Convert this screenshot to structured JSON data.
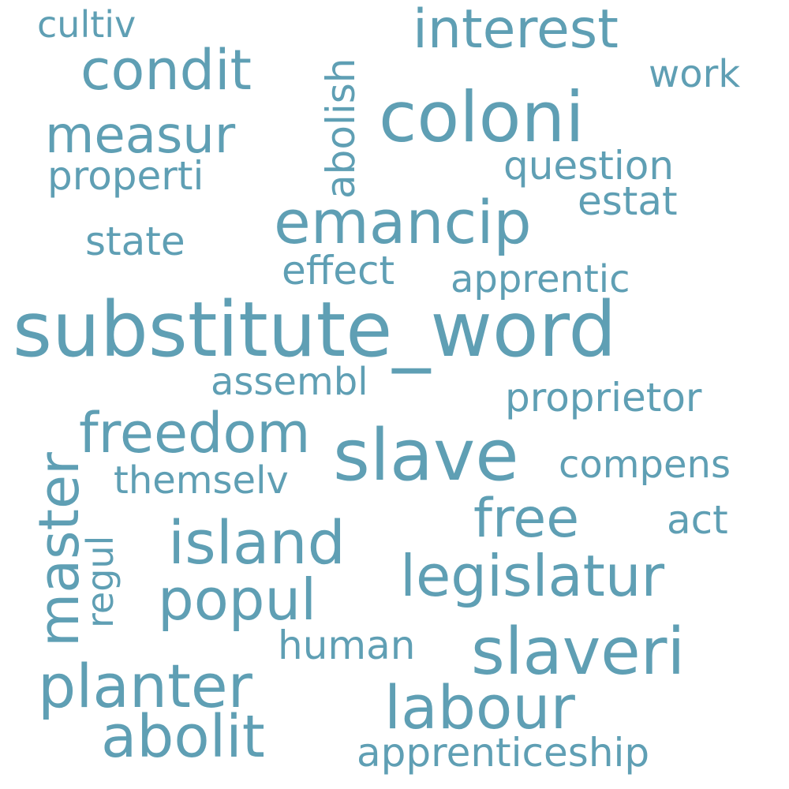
{
  "colors": {
    "background": "#ffffff",
    "word": "#5f9fb4"
  },
  "words": {
    "substitute_word": "substitute_word",
    "coloni": "coloni",
    "slave": "slave",
    "slaveri": "slaveri",
    "emancip": "emancip",
    "island": "island",
    "legislatur": "legislatur",
    "labour": "labour",
    "planter": "planter",
    "abolit": "abolit",
    "freedom": "freedom",
    "popul": "popul",
    "free": "free",
    "condit": "condit",
    "interest": "interest",
    "measur": "measur",
    "master": "master",
    "apprenticeship": "apprenticeship",
    "proprietor": "proprietor",
    "apprentic": "apprentic",
    "compens": "compens",
    "assembl": "assembl",
    "question": "question",
    "properti": "properti",
    "effect": "effect",
    "human": "human",
    "themselv": "themselv",
    "state": "state",
    "estat": "estat",
    "act": "act",
    "work": "work",
    "cultiv": "cultiv",
    "abolish": "abolish",
    "regul": "regul"
  }
}
